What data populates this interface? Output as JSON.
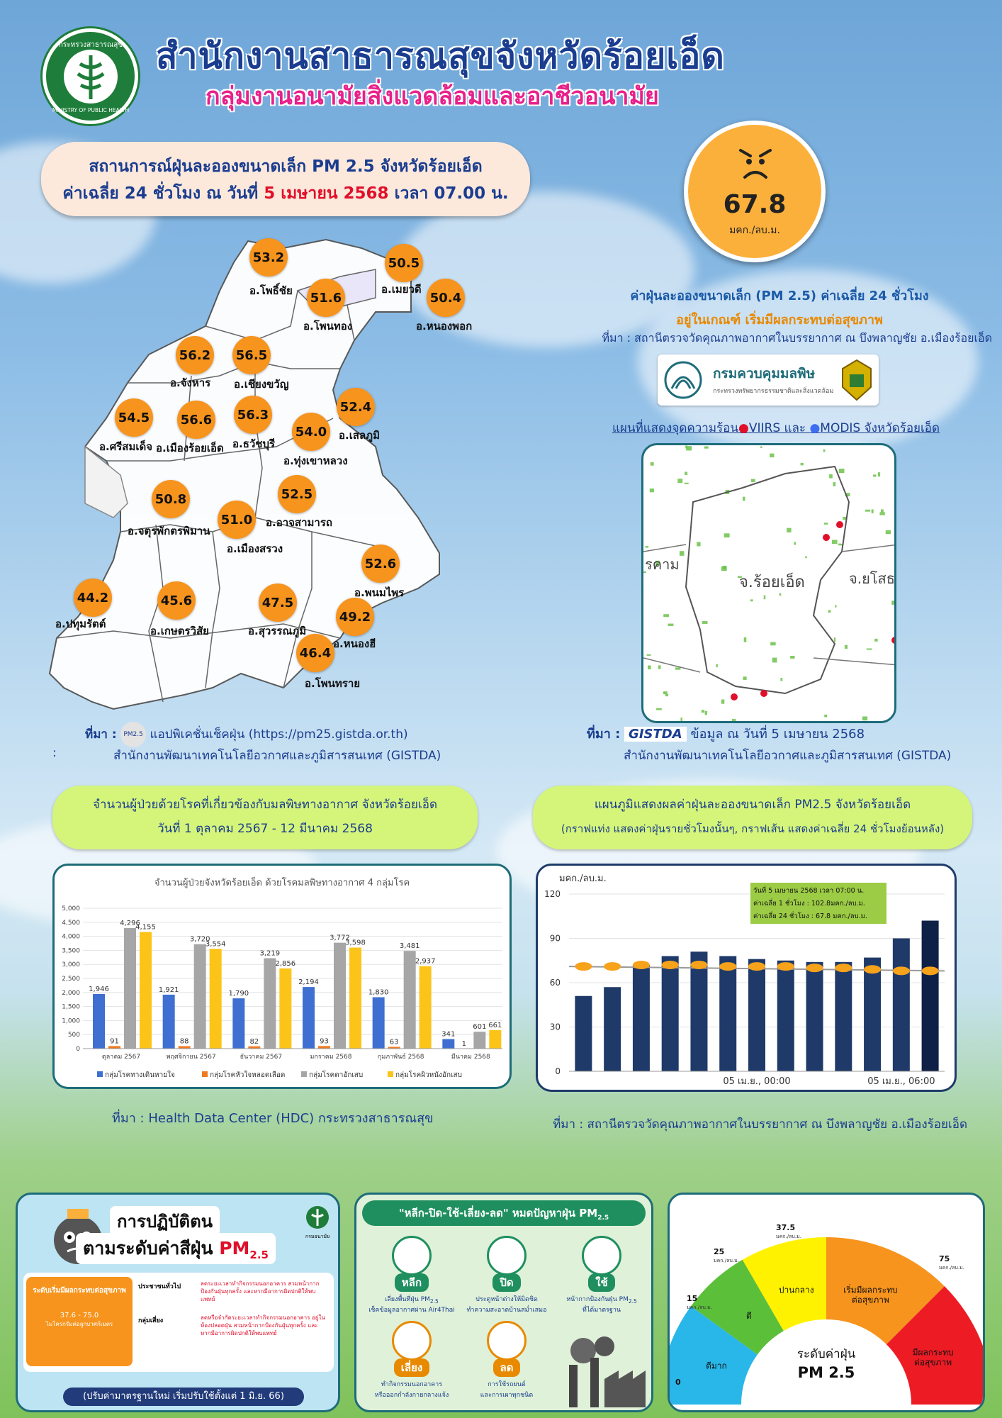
{
  "header": {
    "logo_text": "กระทรวงสาธารณสุข",
    "logo_subtext": "MINISTRY OF PUBLIC HEALTH",
    "title": "สำนักงานสาธารณสุขจังหวัดร้อยเอ็ด",
    "subtitle": "กลุ่มงานอนามัยสิ่งแวดล้อมและอาชีวอนามัย"
  },
  "headline": {
    "line1": "สถานการณ์ฝุ่นละอองขนาดเล็ก PM 2.5 จังหวัดร้อยเอ็ด",
    "line2_prefix": "ค่าเฉลี่ย 24 ชั่วโมง ณ วันที่",
    "line2_date": "5 เมษายน 2568",
    "line2_suffix": "เวลา 07.00 น."
  },
  "aqi": {
    "value": "67.8",
    "unit": "มคก./ลบ.ม.",
    "face_icon": "angry-face-icon",
    "color": "#fbb03b"
  },
  "status": {
    "line1": "ค่าฝุ่นละอองขนาดเล็ก (PM 2.5) ค่าเฉลี่ย 24 ชั่วโมง",
    "line2": "อยู่ในเกณฑ์ เริ่มมีผลกระทบต่อสุขภาพ",
    "source": "ที่มา : สถานีตรวจวัดคุณภาพอากาศในบรรยากาศ ณ บึงพลาญชัย อ.เมืองร้อยเอ็ด",
    "pcd_logo_text": "กรมควบคุมมลพิษ",
    "pcd_logo_sub": "กระทรวงทรัพยากรธรรมชาติและสิ่งแวดล้อม"
  },
  "map": {
    "districts": [
      {
        "value": "53.2",
        "name": "อ.โพธิ์ชัย"
      },
      {
        "value": "50.5",
        "name": "อ.เมยวดี"
      },
      {
        "value": "51.6",
        "name": "อ.โพนทอง"
      },
      {
        "value": "50.4",
        "name": "อ.หนองพอก"
      },
      {
        "value": "56.2",
        "name": "อ.จังหาร"
      },
      {
        "value": "56.5",
        "name": "อ.เชียงขวัญ"
      },
      {
        "value": "52.4",
        "name": "อ.เสลภูมิ"
      },
      {
        "value": "54.5",
        "name": "อ.ศรีสมเด็จ"
      },
      {
        "value": "56.6",
        "name": "อ.เมืองร้อยเอ็ด"
      },
      {
        "value": "56.3",
        "name": "อ.ธวัชบุรี"
      },
      {
        "value": "54.0",
        "name": "อ.ทุ่งเขาหลวง"
      },
      {
        "value": "52.5",
        "name": "อ.อาจสามารถ"
      },
      {
        "value": "50.8",
        "name": "อ.จตุรพักตรพิมาน"
      },
      {
        "value": "51.0",
        "name": "อ.เมืองสรวง"
      },
      {
        "value": "52.6",
        "name": "อ.พนมไพร"
      },
      {
        "value": "44.2",
        "name": "อ.ปทุมรัตต์"
      },
      {
        "value": "45.6",
        "name": "อ.เกษตรวิสัย"
      },
      {
        "value": "47.5",
        "name": "อ.สุวรรณภูมิ"
      },
      {
        "value": "49.2",
        "name": "อ.หนองฮี"
      },
      {
        "value": "46.4",
        "name": "อ.โพนทราย"
      }
    ],
    "source_prefix": "ที่มา :",
    "source_app": "แอปพิเคชั่นเช็คฝุ่น (https://pm25.gistda.or.th)",
    "source_org": "สำนักงานพัฒนาเทคโนโลยีอวกาศและภูมิสารสนเทศ (GISTDA)",
    "app_logo_text": "PM2.5",
    "colon": ":"
  },
  "hotspot": {
    "title_prefix": "แผนที่แสดงจุดความร้อน",
    "viirs": "VIIRS",
    "and": "และ",
    "modis": "MODIS",
    "title_suffix": "จังหวัดร้อยเอ็ด",
    "label_left": "รคาม",
    "label_center": "จ.ร้อยเอ็ด",
    "label_right": "จ.ยโสธ",
    "source_prefix": "ที่มา :",
    "gistda_logo": "GISTDA",
    "source_date": "ข้อมูล ณ วันที่ 5 เมษายน 2568",
    "source_org": "สำนักงานพัฒนาเทคโนโลยีอวกาศและภูมิสารสนเทศ (GISTDA)"
  },
  "patients_pill": {
    "line1": "จำนวนผู้ป่วยด้วยโรคที่เกี่ยวข้องกับมลพิษทางอากาศ จังหวัดร้อยเอ็ด",
    "line2": "วันที่ 1 ตุลาคม 2567 - 12 มีนาคม 2568"
  },
  "pm_pill": {
    "line1": "แผนภูมิแสดงผลค่าฝุ่นละอองขนาดเล็ก PM2.5 จังหวัดร้อยเอ็ด",
    "line2": "(กราฟแท่ง แสดงค่าฝุ่นรายชั่วโมงนั้นๆ, กราฟเส้น แสดงค่าเฉลี่ย 24 ชั่วโมงย้อนหลัง)"
  },
  "chart_data": [
    {
      "type": "bar",
      "title": "จำนวนผู้ป่วยจังหวัดร้อยเอ็ด ด้วยโรคมลพิษทางอากาศ 4 กลุ่มโรค",
      "categories": [
        "ตุลาคม 2567",
        "พฤศจิกายน 2567",
        "ธันวาคม 2567",
        "มกราคม 2568",
        "กุมภาพันธ์ 2568",
        "มีนาคม 2568"
      ],
      "series": [
        {
          "name": "กลุ่มโรคทางเดินหายใจ",
          "color": "#3e6fd1",
          "values": [
            1946,
            1921,
            1790,
            2194,
            1830,
            341
          ]
        },
        {
          "name": "กลุ่มโรคหัวใจหลอดเลือด",
          "color": "#f07a22",
          "values": [
            91,
            88,
            82,
            93,
            63,
            1
          ]
        },
        {
          "name": "กลุ่มโรคตาอักเสบ",
          "color": "#a6a6a6",
          "values": [
            4296,
            3720,
            3219,
            3772,
            3481,
            601
          ]
        },
        {
          "name": "กลุ่มโรคผิวหนังอักเสบ",
          "color": "#fcc419",
          "values": [
            4155,
            3554,
            2856,
            3598,
            2937,
            661
          ]
        }
      ],
      "ylim": [
        0,
        5000
      ],
      "yticks": [
        "0",
        "500",
        "1,000",
        "1,500",
        "2,000",
        "2,500",
        "3,000",
        "3,500",
        "4,000",
        "4,500",
        "5,000"
      ],
      "legend": "bottom",
      "source": "ที่มา :  Health Data Center (HDC) กระทรวงสาธารณสุข"
    },
    {
      "type": "bar",
      "ylabel": "มคก./ลบ.ม.",
      "ylim": [
        0,
        120
      ],
      "yticks": [
        "0",
        "30",
        "60",
        "90",
        "120"
      ],
      "x_labels": [
        "05 เม.ย., 00:00",
        "05 เม.ย., 06:00"
      ],
      "hourly_values": [
        51,
        57,
        72,
        78,
        81,
        78,
        76,
        75,
        74,
        74,
        77,
        90,
        102
      ],
      "avg24_values": [
        71,
        71,
        72,
        72,
        72,
        71,
        71,
        71,
        70,
        70,
        69,
        68,
        68
      ],
      "info_box": {
        "line1": "วันที่ 5  เมษายน  2568  เวลา 07:00 น.",
        "line2": "ค่าเฉลี่ย 1 ชั่วโมง    : 102.8มคก./ลบ.ม.",
        "line3": "ค่าเฉลี่ย 24 ชั่วโมง : 67.8 มคก./ลบ.ม."
      },
      "source": "ที่มา : สถานีตรวจวัดคุณภาพอากาศในบรรยากาศ ณ บึงพลาญชัย อ.เมืองร้อยเอ็ด"
    }
  ],
  "poster1": {
    "title1": "การปฏิบัติตน",
    "title2": "ตามระดับค่าสีฝุ่น",
    "pm": "PM",
    "pm_sub": "2.5",
    "level_title": "ระดับเริ่มมีผลกระทบต่อสุขภาพ",
    "level_range": "37.6 - 75.0",
    "level_unit": "ไมโครกรัมต่อลูกบาศก์เมตร",
    "general": "ประชาชนทั่วไป",
    "general_text": "ลดระยะเวลาทำกิจกรรมนอกอาคาร สวมหน้ากากป้องกันฝุ่นทุกครั้ง และหากมีอาการผิดปกติให้พบแพทย์",
    "risk": "กลุ่มเสี่ยง",
    "risk_text": "ลดหรือจำกัดระยะเวลาทำกิจกรรมนอกอาคาร อยู่ในห้องปลอดฝุ่น สวมหน้ากากป้องกันฝุ่นทุกครั้ง และหากมีอาการผิดปกติให้พบแพทย์",
    "footer": "(ปรับค่ามาตรฐานใหม่ เริ่มปรับใช้ตั้งแต่ 1 มิ.ย. 66)",
    "agency": "กรมอนามัย"
  },
  "poster2": {
    "title": "\"หลีก-ปิด-ใช้-เลี่ยง-ลด\" หมดปัญหาฝุ่น PM",
    "title_sub": "2.5",
    "items": [
      {
        "head": "หลีก",
        "text1": "เลี่ยงพื้นที่ฝุ่น PM",
        "text1_sub": "2.5",
        "text2": "เช็คข้อมูลอากาศผ่าน Air4Thai"
      },
      {
        "head": "ปิด",
        "text1": "ประตูหน้าต่างให้มิดชิด",
        "text1_sub": "",
        "text2": "ทำความสะอาดบ้านสม่ำเสมอ"
      },
      {
        "head": "ใช้",
        "text1": "หน้ากากป้องกันฝุ่น PM",
        "text1_sub": "2.5",
        "text2": "ที่ได้มาตรฐาน"
      },
      {
        "head": "เลี่ยง",
        "text1": "ทำกิจกรรมนอกอาคาร",
        "text1_sub": "",
        "text2": "หรือออกกำลังกายกลางแจ้ง"
      },
      {
        "head": "ลด",
        "text1": "การใช้รถยนต์",
        "text1_sub": "",
        "text2": "และการเผาทุกชนิด"
      }
    ]
  },
  "gauge": {
    "title1": "ระดับค่าฝุ่น",
    "title2": "PM 2.5",
    "unit": "มคก./ลบ.ม.",
    "thresholds": [
      "0",
      "15",
      "25",
      "37.5",
      "75"
    ],
    "segments": [
      {
        "label": "ดีมาก",
        "color": "#29b6e8"
      },
      {
        "label": "ดี",
        "color": "#5cbf3a"
      },
      {
        "label": "ปานกลาง",
        "color": "#fff200"
      },
      {
        "label": "เริ่มมีผลกระทบ\nต่อสุขภาพ",
        "color": "#f7941d"
      },
      {
        "label": "มีผลกระทบ\nต่อสุขภาพ",
        "color": "#ed1c24"
      }
    ]
  }
}
